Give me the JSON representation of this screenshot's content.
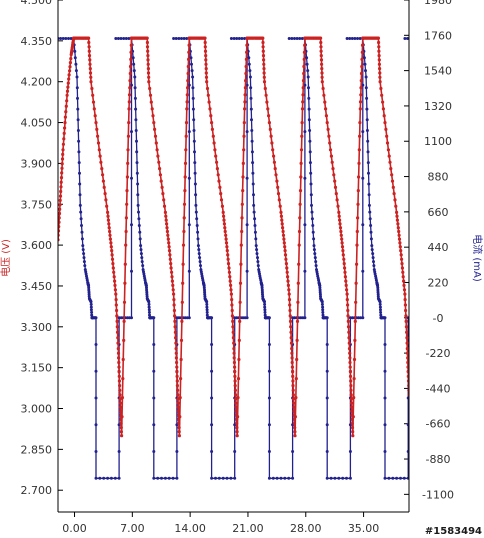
{
  "chart_data": {
    "type": "line",
    "title": "",
    "xlabel": "",
    "ylabel_left": "电压 (V)",
    "ylabel_right": "电流 (mA)",
    "xlim": [
      -2,
      40.5
    ],
    "ylim_left": [
      2.62,
      4.5
    ],
    "ylim_right": [
      -1210,
      1980
    ],
    "x_ticks": [
      "0.00",
      "7.00",
      "14.00",
      "21.00",
      "28.00",
      "35.00"
    ],
    "x_tick_values": [
      0,
      7,
      14,
      21,
      28,
      35
    ],
    "y_ticks_left": [
      "2.700",
      "2.850",
      "3.000",
      "3.150",
      "3.300",
      "3.450",
      "3.600",
      "3.750",
      "3.900",
      "4.050",
      "4.200",
      "4.350",
      "4.500"
    ],
    "y_tick_values_left": [
      2.7,
      2.85,
      3.0,
      3.15,
      3.3,
      3.45,
      3.6,
      3.75,
      3.9,
      4.05,
      4.2,
      4.35,
      4.5
    ],
    "y_ticks_right": [
      "-1100",
      "-880",
      "-660",
      "-440",
      "-220",
      "-0",
      "220",
      "440",
      "660",
      "880",
      "1100",
      "1320",
      "1540",
      "1760",
      "1980"
    ],
    "y_tick_values_right": [
      -1100,
      -880,
      -660,
      -440,
      -220,
      0,
      220,
      440,
      660,
      880,
      1100,
      1320,
      1540,
      1760,
      1980
    ],
    "grid": false,
    "colors": {
      "voltage": "#cc2222",
      "current": "#22228f",
      "axis": "#000000"
    },
    "series": [
      {
        "name": "电压 (V)",
        "axis": "left",
        "cycles": [
          {
            "x": [
              -2.0,
              -1.7,
              -1.4,
              -0.9,
              -0.4,
              -0.1,
              0.0,
              0.9,
              1.7,
              2.0,
              3.0,
              4.0,
              4.5,
              5.0,
              5.3,
              5.5,
              5.7,
              6.2,
              6.6,
              6.9
            ],
            "y": [
              3.62,
              3.78,
              3.95,
              4.15,
              4.3,
              4.36,
              4.36,
              4.36,
              4.36,
              4.2,
              3.95,
              3.72,
              3.58,
              3.42,
              3.22,
              3.05,
              2.9,
              3.6,
              4.1,
              4.36
            ]
          },
          {
            "x": [
              6.9,
              7.9,
              8.8,
              9.0,
              10.0,
              11.0,
              11.5,
              12.0,
              12.3,
              12.5,
              12.7,
              13.2,
              13.6,
              13.9
            ],
            "y": [
              4.36,
              4.36,
              4.36,
              4.2,
              3.95,
              3.72,
              3.58,
              3.42,
              3.22,
              3.05,
              2.9,
              3.6,
              4.1,
              4.36
            ]
          },
          {
            "x": [
              13.9,
              14.9,
              15.8,
              16.0,
              17.0,
              18.0,
              18.5,
              19.0,
              19.3,
              19.5,
              19.7,
              20.2,
              20.6,
              20.9
            ],
            "y": [
              4.36,
              4.36,
              4.36,
              4.2,
              3.95,
              3.72,
              3.58,
              3.42,
              3.22,
              3.05,
              2.9,
              3.6,
              4.1,
              4.36
            ]
          },
          {
            "x": [
              20.9,
              21.9,
              22.8,
              23.0,
              24.0,
              25.0,
              25.5,
              26.0,
              26.3,
              26.5,
              26.7,
              27.2,
              27.6,
              27.9
            ],
            "y": [
              4.36,
              4.36,
              4.36,
              4.2,
              3.95,
              3.72,
              3.58,
              3.42,
              3.22,
              3.05,
              2.9,
              3.6,
              4.1,
              4.36
            ]
          },
          {
            "x": [
              27.9,
              28.9,
              29.8,
              30.0,
              31.0,
              32.0,
              32.5,
              33.0,
              33.3,
              33.5,
              33.7,
              34.2,
              34.6,
              34.9
            ],
            "y": [
              4.36,
              4.36,
              4.36,
              4.2,
              3.95,
              3.72,
              3.58,
              3.42,
              3.22,
              3.05,
              2.9,
              3.6,
              4.1,
              4.36
            ]
          },
          {
            "x": [
              34.9,
              35.9,
              36.8,
              37.0,
              38.0,
              39.0,
              39.5,
              40.0,
              40.3,
              40.5
            ],
            "y": [
              4.36,
              4.36,
              4.36,
              4.2,
              3.95,
              3.72,
              3.58,
              3.42,
              3.22,
              3.05
            ]
          }
        ]
      },
      {
        "name": "电流 (mA)",
        "axis": "right",
        "x": [
          -2.0,
          -0.1,
          0.3,
          0.5,
          0.7,
          1.0,
          1.3,
          1.6,
          1.7,
          1.8,
          2.0,
          2.1,
          2.2,
          2.6,
          2.6,
          5.4,
          5.4,
          6.9,
          6.9
        ],
        "y": [
          1740,
          1740,
          1500,
          1100,
          700,
          450,
          300,
          220,
          200,
          120,
          100,
          0,
          0,
          0,
          -1000,
          -1000,
          0,
          0,
          1740
        ],
        "period": 7.0,
        "repeat_until": 40.5
      }
    ]
  },
  "watermark": "#1583494"
}
